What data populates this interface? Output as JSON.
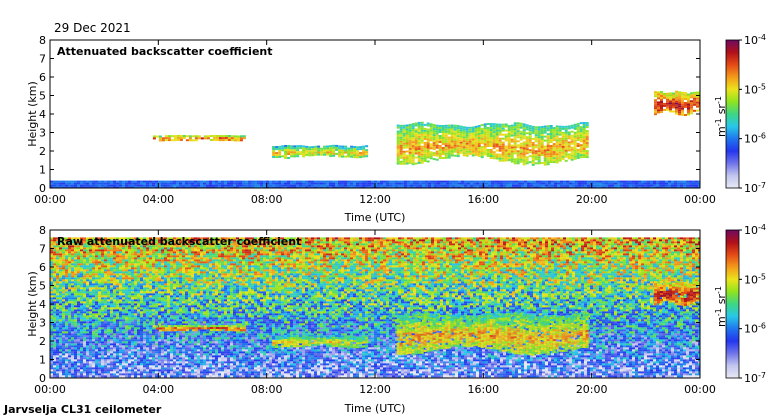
{
  "figure": {
    "date": "29 Dec 2021",
    "station": "Jarvselja CL31 ceilometer"
  },
  "colormap": {
    "stops": [
      "#e9e9f4",
      "#c2c6ee",
      "#6f74ea",
      "#2436ee",
      "#1f76ee",
      "#28c8e8",
      "#3ed684",
      "#8fe41e",
      "#ece31c",
      "#f39a1a",
      "#e44a16",
      "#b0101a",
      "#6e0a62"
    ]
  },
  "chart_data": [
    {
      "type": "heatmap",
      "title": "Attenuated backscatter coefficient",
      "xlabel": "Time (UTC)",
      "ylabel": "Height (km)",
      "x_ticks": [
        "00:00",
        "04:00",
        "08:00",
        "12:00",
        "16:00",
        "20:00",
        "00:00"
      ],
      "y_ticks": [
        "0",
        "1",
        "2",
        "3",
        "4",
        "5",
        "6",
        "7",
        "8"
      ],
      "xlim_hours": [
        0,
        24
      ],
      "ylim_km": [
        0,
        8
      ],
      "colorbar": {
        "ticks": [
          "10",
          "10",
          "10",
          "10"
        ],
        "exponents": [
          "-4",
          "-5",
          "-6",
          "-7"
        ],
        "unit": "m",
        "unit_exp_1": "-1",
        "unit_mid": "sr",
        "unit_exp_2": "-1",
        "range_log10": [
          -7,
          -4
        ]
      },
      "features": [
        {
          "name": "surface aerosol layer",
          "hours": [
            0,
            24
          ],
          "height_km": [
            0,
            0.4
          ],
          "level": 0.3
        },
        {
          "name": "mid-level cloud",
          "hours": [
            3.8,
            7.2
          ],
          "height_km": [
            2.6,
            2.9
          ],
          "level": 0.85
        },
        {
          "name": "low stratocumulus",
          "hours": [
            8.2,
            11.7
          ],
          "height_km": [
            1.7,
            2.4
          ],
          "level": 0.7
        },
        {
          "name": "stratocumulus deck",
          "hours": [
            12.8,
            19.8
          ],
          "height_km": [
            1.4,
            3.8
          ],
          "level": 0.75
        },
        {
          "name": "upper cloud",
          "hours": [
            22.3,
            24
          ],
          "height_km": [
            4.0,
            5.4
          ],
          "level": 0.9
        }
      ]
    },
    {
      "type": "heatmap",
      "title": "Raw attenuated backscatter coefficient",
      "xlabel": "Time (UTC)",
      "ylabel": "Height (km)",
      "x_ticks": [
        "00:00",
        "04:00",
        "08:00",
        "12:00",
        "16:00",
        "20:00",
        "00:00"
      ],
      "y_ticks": [
        "0",
        "1",
        "2",
        "3",
        "4",
        "5",
        "6",
        "7",
        "8"
      ],
      "xlim_hours": [
        0,
        24
      ],
      "ylim_km": [
        0,
        8
      ],
      "colorbar": {
        "ticks": [
          "10",
          "10",
          "10",
          "10"
        ],
        "exponents": [
          "-4",
          "-5",
          "-6",
          "-7"
        ],
        "unit": "m",
        "unit_exp_1": "-1",
        "unit_mid": "sr",
        "unit_exp_2": "-1",
        "range_log10": [
          -7,
          -4
        ]
      },
      "features": [
        {
          "name": "noisy background",
          "hours": [
            0,
            24
          ],
          "height_km": [
            0,
            7.6
          ],
          "level": 0.55
        },
        {
          "name": "mid-level cloud",
          "hours": [
            3.8,
            7.2
          ],
          "height_km": [
            2.6,
            2.9
          ],
          "level": 0.85
        },
        {
          "name": "low stratocumulus",
          "hours": [
            8.2,
            11.7
          ],
          "height_km": [
            1.7,
            2.4
          ],
          "level": 0.7
        },
        {
          "name": "stratocumulus deck",
          "hours": [
            12.8,
            19.8
          ],
          "height_km": [
            1.4,
            3.8
          ],
          "level": 0.75
        },
        {
          "name": "upper cloud",
          "hours": [
            22.3,
            24
          ],
          "height_km": [
            4.0,
            5.4
          ],
          "level": 0.9
        }
      ]
    }
  ]
}
